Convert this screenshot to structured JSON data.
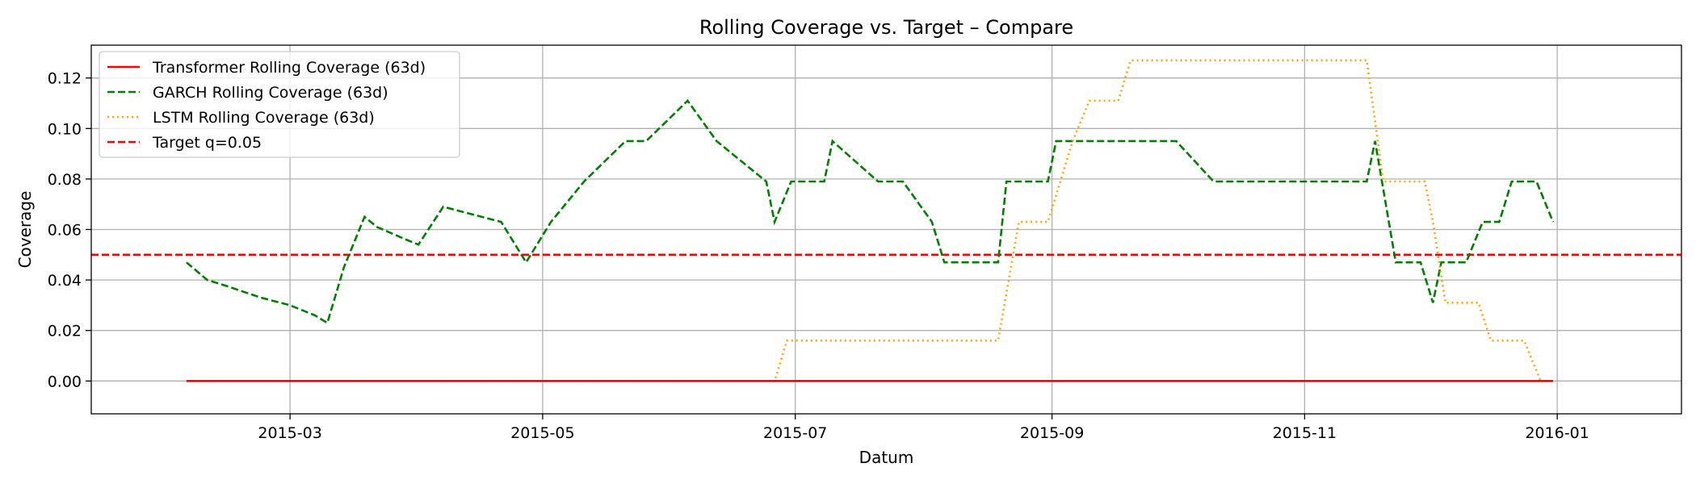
{
  "chart_data": {
    "type": "line",
    "title": "Rolling Coverage vs. Target – Compare",
    "xlabel": "Datum",
    "ylabel": "Coverage",
    "x_ticks": [
      "2015-03",
      "2015-05",
      "2015-07",
      "2015-09",
      "2015-11",
      "2016-01"
    ],
    "y_ticks": [
      "0.00",
      "0.02",
      "0.04",
      "0.06",
      "0.08",
      "0.10",
      "0.12"
    ],
    "xlim": [
      "2015-01-12",
      "2016-01-31"
    ],
    "ylim": [
      -0.013,
      0.133
    ],
    "grid": true,
    "legend_position": "top-left",
    "series": [
      {
        "name": "Transformer Rolling Coverage (63d)",
        "color": "#ff0000",
        "style": "solid",
        "x": [
          "2015-02-04",
          "2015-12-31"
        ],
        "y": [
          0.0,
          0.0
        ]
      },
      {
        "name": "GARCH Rolling Coverage (63d)",
        "color": "#008000",
        "style": "dashed",
        "x": [
          "2015-02-04",
          "2015-02-09",
          "2015-02-13",
          "2015-02-22",
          "2015-03-01",
          "2015-03-07",
          "2015-03-08",
          "2015-03-10",
          "2015-03-14",
          "2015-03-19",
          "2015-03-22",
          "2015-03-29",
          "2015-04-01",
          "2015-04-07",
          "2015-04-14",
          "2015-04-21",
          "2015-04-27",
          "2015-05-03",
          "2015-05-11",
          "2015-05-21",
          "2015-05-26",
          "2015-06-05",
          "2015-06-12",
          "2015-06-24",
          "2015-06-26",
          "2015-06-30",
          "2015-07-02",
          "2015-07-08",
          "2015-07-10",
          "2015-07-21",
          "2015-07-27",
          "2015-08-03",
          "2015-08-06",
          "2015-08-10",
          "2015-08-19",
          "2015-08-21",
          "2015-08-31",
          "2015-09-02",
          "2015-09-10",
          "2015-10-01",
          "2015-10-10",
          "2015-10-30",
          "2015-11-10",
          "2015-11-16",
          "2015-11-18",
          "2015-11-23",
          "2015-11-29",
          "2015-12-02",
          "2015-12-04",
          "2015-12-10",
          "2015-12-14",
          "2015-12-18",
          "2015-12-21",
          "2015-12-27",
          "2015-12-31"
        ],
        "y": [
          0.047,
          0.04,
          0.038,
          0.033,
          0.03,
          0.026,
          0.025,
          0.023,
          0.045,
          0.065,
          0.061,
          0.056,
          0.054,
          0.069,
          0.066,
          0.063,
          0.047,
          0.063,
          0.079,
          0.095,
          0.095,
          0.111,
          0.095,
          0.079,
          0.063,
          0.079,
          0.079,
          0.079,
          0.095,
          0.079,
          0.079,
          0.063,
          0.047,
          0.047,
          0.047,
          0.079,
          0.079,
          0.095,
          0.095,
          0.095,
          0.079,
          0.079,
          0.079,
          0.079,
          0.095,
          0.047,
          0.047,
          0.031,
          0.047,
          0.047,
          0.063,
          0.063,
          0.079,
          0.079,
          0.063
        ]
      },
      {
        "name": "LSTM Rolling Coverage (63d)",
        "color": "#ffa500",
        "style": "dotted",
        "x": [
          "2015-02-04",
          "2015-06-26",
          "2015-06-29",
          "2015-08-19",
          "2015-08-24",
          "2015-08-31",
          "2015-09-03",
          "2015-09-06",
          "2015-09-10",
          "2015-09-17",
          "2015-09-20",
          "2015-11-16",
          "2015-11-20",
          "2015-11-30",
          "2015-12-02",
          "2015-12-05",
          "2015-12-13",
          "2015-12-16",
          "2015-12-24",
          "2015-12-28",
          "2015-12-31"
        ],
        "y": [
          0.0,
          0.0,
          0.016,
          0.016,
          0.063,
          0.063,
          0.079,
          0.095,
          0.111,
          0.111,
          0.127,
          0.127,
          0.079,
          0.079,
          0.063,
          0.031,
          0.031,
          0.016,
          0.016,
          0.0,
          0.0
        ]
      },
      {
        "name": "Target q=0.05",
        "color": "#ff0000",
        "style": "dashed",
        "type": "hline",
        "y": 0.05
      }
    ]
  }
}
